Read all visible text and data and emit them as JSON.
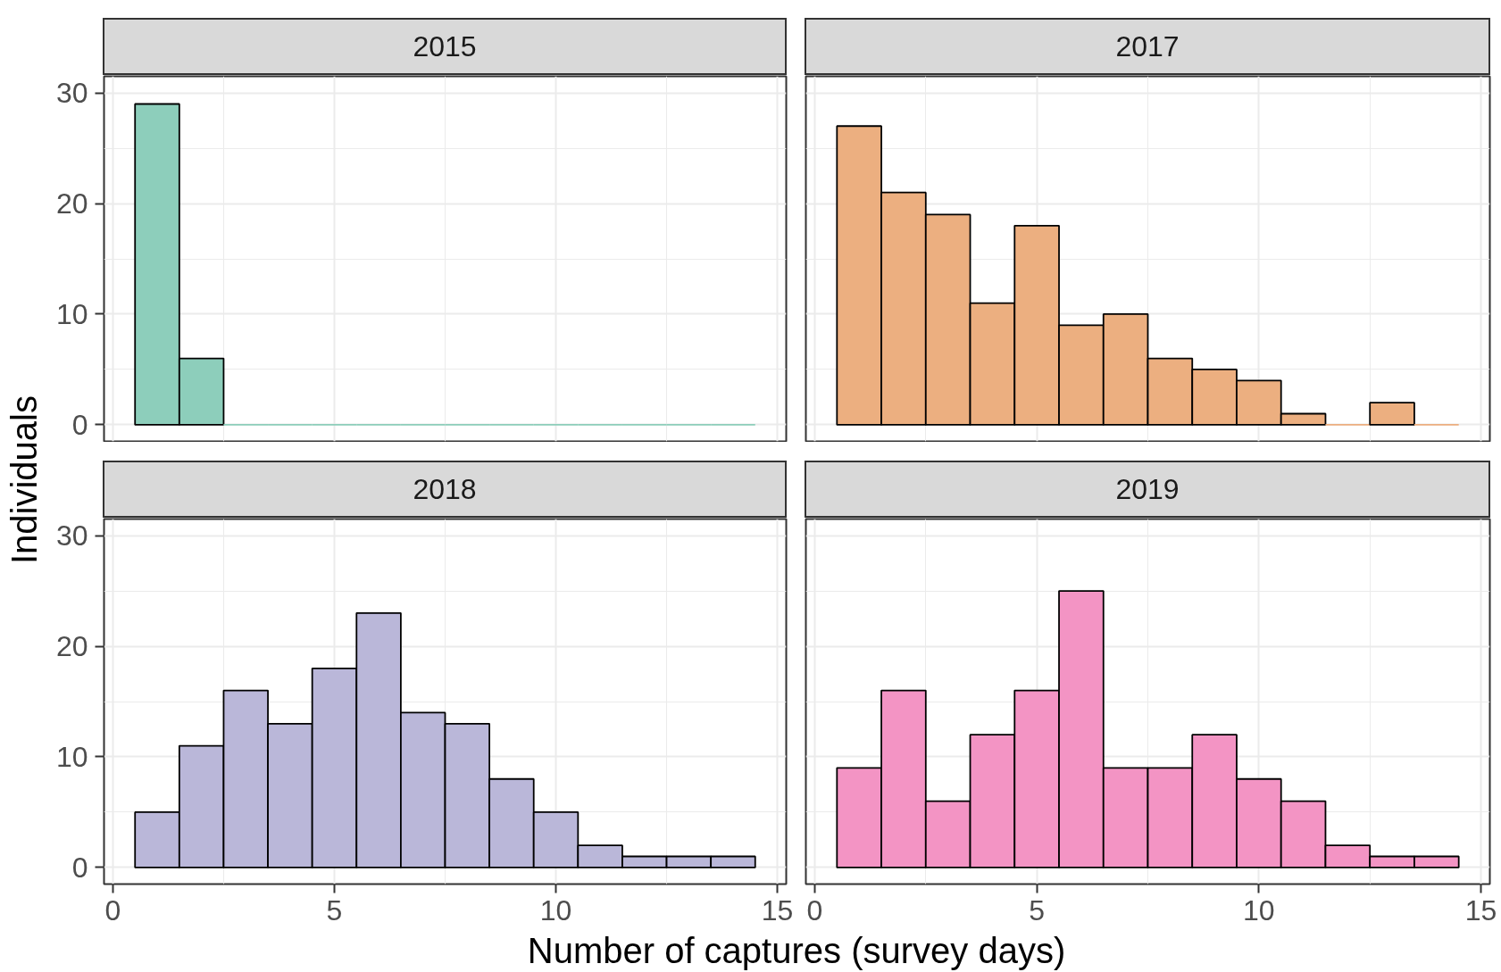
{
  "chart_data": [
    {
      "type": "histogram",
      "title": "2015",
      "ylabel": "Individuals",
      "bins": [
        0.5,
        1.5,
        2.5,
        3.5,
        4.5,
        5.5,
        6.5,
        7.5,
        8.5,
        9.5,
        10.5,
        11.5,
        12.5,
        13.5,
        14.5
      ],
      "values": [
        29,
        6,
        0,
        0,
        0,
        0,
        0,
        0,
        0,
        0,
        0,
        0,
        0,
        0
      ],
      "color": "#8dcebb",
      "xlim": [
        -0.2,
        15.2
      ],
      "xticks": [
        0,
        5,
        10,
        15
      ],
      "ylim": [
        -1.5,
        31.5
      ],
      "yticks": [
        0,
        10,
        20,
        30
      ],
      "grid": true,
      "tick_labels": "y"
    },
    {
      "type": "histogram",
      "title": "2017",
      "bins": [
        0.5,
        1.5,
        2.5,
        3.5,
        4.5,
        5.5,
        6.5,
        7.5,
        8.5,
        9.5,
        10.5,
        11.5,
        12.5,
        13.5,
        14.5
      ],
      "values": [
        27,
        21,
        19,
        11,
        18,
        9,
        10,
        6,
        5,
        4,
        1,
        0,
        2,
        0
      ],
      "color": "#ecaf80",
      "xlim": [
        -0.2,
        15.2
      ],
      "xticks": [
        0,
        5,
        10,
        15
      ],
      "ylim": [
        -1.5,
        31.5
      ],
      "yticks": [
        0,
        10,
        20,
        30
      ],
      "grid": true,
      "tick_labels": false
    },
    {
      "type": "histogram",
      "title": "2018",
      "xlabel": "Number of captures (survey days)",
      "bins": [
        0.5,
        1.5,
        2.5,
        3.5,
        4.5,
        5.5,
        6.5,
        7.5,
        8.5,
        9.5,
        10.5,
        11.5,
        12.5,
        13.5,
        14.5
      ],
      "values": [
        5,
        11,
        16,
        13,
        18,
        23,
        14,
        13,
        8,
        5,
        2,
        1,
        1,
        1
      ],
      "color": "#bab7d9",
      "xlim": [
        -0.2,
        15.2
      ],
      "xticks": [
        0,
        5,
        10,
        15
      ],
      "ylim": [
        -1.5,
        31.5
      ],
      "yticks": [
        0,
        10,
        20,
        30
      ],
      "grid": true
    },
    {
      "type": "histogram",
      "title": "2019",
      "bins": [
        0.5,
        1.5,
        2.5,
        3.5,
        4.5,
        5.5,
        6.5,
        7.5,
        8.5,
        9.5,
        10.5,
        11.5,
        12.5,
        13.5,
        14.5
      ],
      "values": [
        9,
        16,
        6,
        12,
        16,
        25,
        9,
        9,
        12,
        8,
        6,
        2,
        1,
        1
      ],
      "color": "#f394c4",
      "xlim": [
        -0.2,
        15.2
      ],
      "xticks": [
        0,
        5,
        10,
        15
      ],
      "ylim": [
        -1.5,
        31.5
      ],
      "yticks": [
        0,
        10,
        20,
        30
      ],
      "grid": true,
      "tick_labels": "x"
    }
  ]
}
